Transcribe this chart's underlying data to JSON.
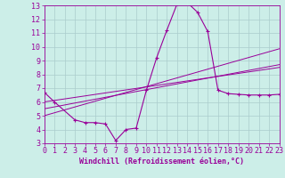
{
  "background_color": "#cceee8",
  "grid_color": "#aacccc",
  "line_color": "#990099",
  "xlabel": "Windchill (Refroidissement éolien,°C)",
  "xlim": [
    0,
    23
  ],
  "ylim": [
    3,
    13
  ],
  "xticks": [
    0,
    1,
    2,
    3,
    4,
    5,
    6,
    7,
    8,
    9,
    10,
    11,
    12,
    13,
    14,
    15,
    16,
    17,
    18,
    19,
    20,
    21,
    22,
    23
  ],
  "yticks": [
    3,
    4,
    5,
    6,
    7,
    8,
    9,
    10,
    11,
    12,
    13
  ],
  "line1_x": [
    0,
    1,
    3,
    4,
    5,
    6,
    7,
    8,
    9,
    10,
    11,
    12,
    13,
    14,
    15,
    16,
    17,
    18,
    19,
    20,
    21,
    22,
    23
  ],
  "line1_y": [
    6.7,
    6.0,
    4.7,
    4.5,
    4.5,
    4.4,
    3.2,
    4.0,
    4.1,
    6.85,
    9.2,
    11.2,
    13.1,
    13.2,
    12.5,
    11.1,
    6.85,
    6.6,
    6.55,
    6.5,
    6.5,
    6.5,
    6.55
  ],
  "line2_x": [
    0,
    23
  ],
  "line2_y": [
    5.0,
    9.85
  ],
  "line3_x": [
    0,
    23
  ],
  "line3_y": [
    5.5,
    8.7
  ],
  "line4_x": [
    0,
    23
  ],
  "line4_y": [
    6.0,
    8.5
  ],
  "xlabel_fontsize": 6,
  "tick_fontsize": 6
}
